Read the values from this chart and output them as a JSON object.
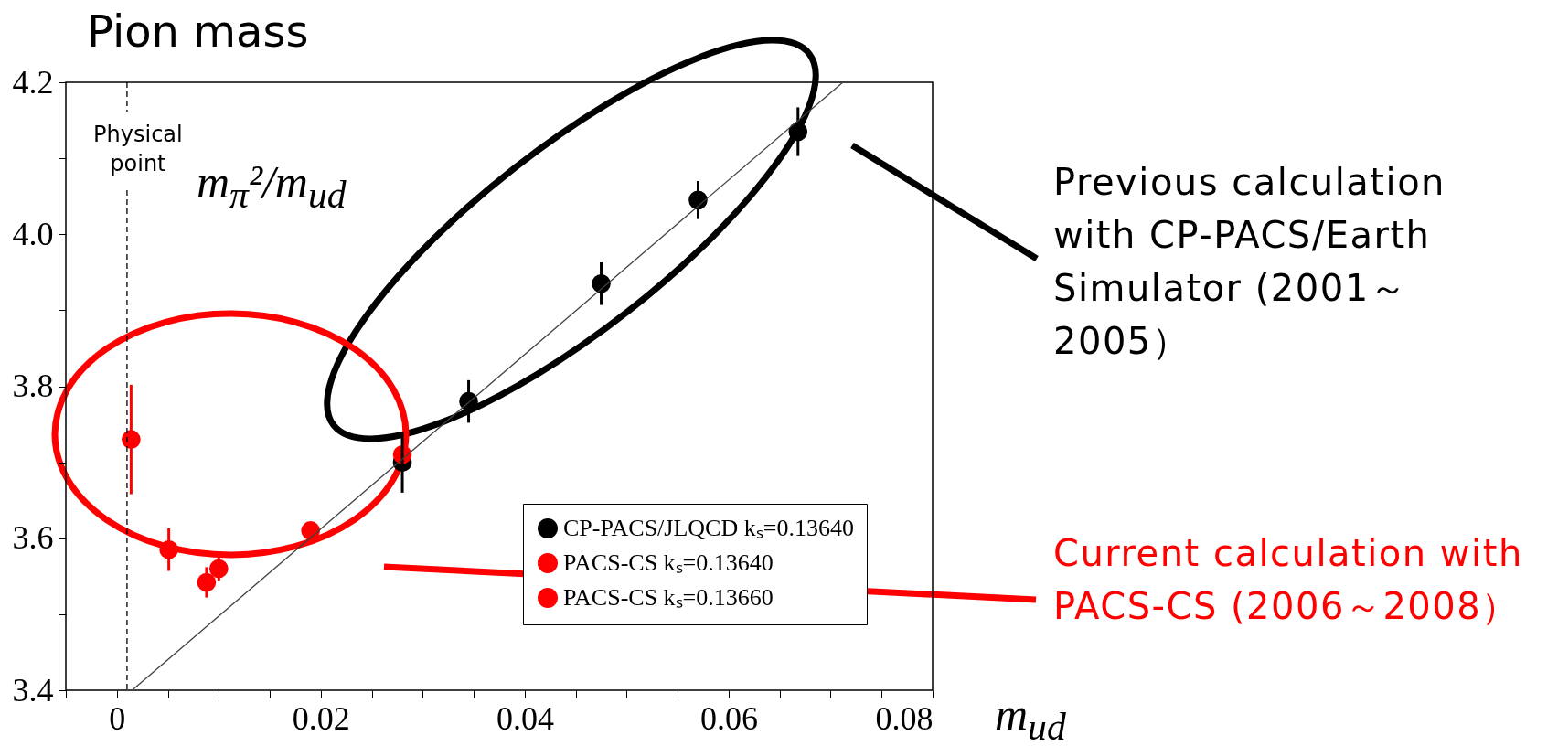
{
  "chart_data": {
    "type": "scatter",
    "title": "Pion mass",
    "xlabel": "m$_{ud}$",
    "ylabel": "m$_{π}$²/m$_{ud}$",
    "xlim": [
      -0.005,
      0.08
    ],
    "xticks": [
      {
        "value": -0.005,
        "label": null
      },
      0,
      {
        "value": 0.005,
        "label": null
      },
      {
        "value": 0.01,
        "label": null
      },
      {
        "value": 0.015,
        "label": null
      },
      0.02,
      {
        "value": 0.025,
        "label": null
      },
      {
        "value": 0.03,
        "label": null
      },
      {
        "value": 0.035,
        "label": null
      },
      0.04,
      {
        "value": 0.045,
        "label": null
      },
      {
        "value": 0.05,
        "label": null
      },
      {
        "value": 0.055,
        "label": null
      },
      0.06,
      {
        "value": 0.065,
        "label": null
      },
      {
        "value": 0.07,
        "label": null
      },
      {
        "value": 0.075,
        "label": null
      },
      0.08
    ],
    "ylim": [
      3.4,
      4.2
    ],
    "yticks": [
      3.4,
      {
        "value": 3.5,
        "label": null
      },
      3.6,
      {
        "value": 3.7,
        "label": null
      },
      3.8,
      {
        "value": 3.9,
        "label": null
      },
      {
        "value": 4.0,
        "label": "4.0"
      },
      {
        "value": 4.1,
        "label": null
      },
      4.2
    ],
    "marker": "circle",
    "legend": "bottom right",
    "grid": false,
    "series": [
      {
        "name": "CP-PACS/JLQCD kₛ=0.13640",
        "color": "#000000",
        "x": [
          0.028,
          0.0345,
          0.0475,
          0.057,
          0.0668
        ],
        "values": [
          3.7,
          3.78,
          3.935,
          4.045,
          4.135
        ],
        "errors": [
          0.04,
          0.028,
          0.028,
          0.025,
          0.032
        ]
      },
      {
        "name": "PACS-CS kₛ=0.13640",
        "color": "#ff0000",
        "x": [
          0.0014,
          0.0051,
          0.01,
          0.019,
          0.028
        ],
        "values": [
          3.73,
          3.585,
          3.56,
          3.61,
          3.71
        ],
        "errors": [
          0.072,
          0.028,
          0.016,
          null,
          null
        ]
      },
      {
        "name": "PACS-CS kₛ=0.13660",
        "color": "#ff0000",
        "x": [
          0.0088
        ],
        "values": [
          3.542
        ],
        "errors": [
          0.02
        ]
      },
      {
        "type": "line",
        "marker": "none",
        "color": "#404040",
        "x": [
          0.0015,
          0.0712
        ],
        "values": [
          3.4,
          4.2
        ]
      }
    ],
    "ref_lines": [
      {
        "axis": "x",
        "value": 0.001,
        "label": "Physical point",
        "line_style": "dashed",
        "color": "#000000"
      }
    ],
    "annotations": [
      "Previous calculation with CP-PACS/Earth Simulator (2001～2005）",
      "Current calculation with PACS-CS (2006～2008）"
    ]
  }
}
